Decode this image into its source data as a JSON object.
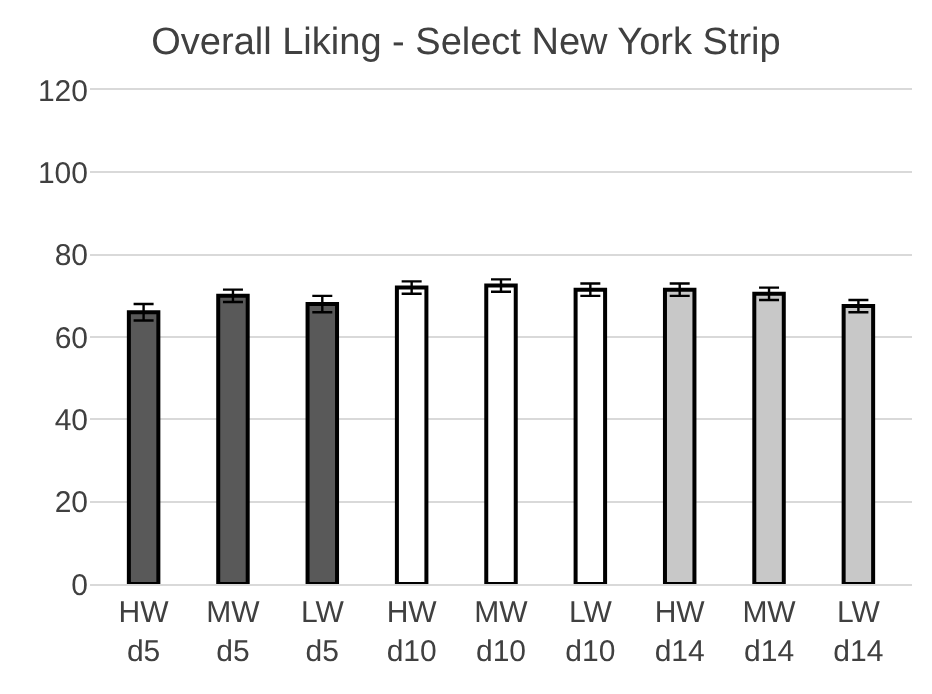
{
  "chart_data": {
    "type": "bar",
    "title": "Overall Liking - Select New York Strip",
    "categories": [
      "HW\nd5",
      "MW\nd5",
      "LW\nd5",
      "HW\nd10",
      "MW\nd10",
      "LW\nd10",
      "HW\nd14",
      "MW\nd14",
      "LW\nd14"
    ],
    "values": [
      66,
      70,
      68,
      72,
      72.5,
      71.5,
      71.5,
      70.5,
      67.5
    ],
    "errors": [
      2,
      1.5,
      2,
      1.5,
      1.5,
      1.5,
      1.5,
      1.5,
      1.5
    ],
    "colors": [
      "#595959",
      "#595959",
      "#595959",
      "#ffffff",
      "#ffffff",
      "#ffffff",
      "#c8c8c8",
      "#c8c8c8",
      "#c8c8c8"
    ],
    "ylim": [
      0,
      120
    ],
    "yticks": [
      0,
      20,
      40,
      60,
      80,
      100,
      120
    ],
    "grid": "y"
  }
}
